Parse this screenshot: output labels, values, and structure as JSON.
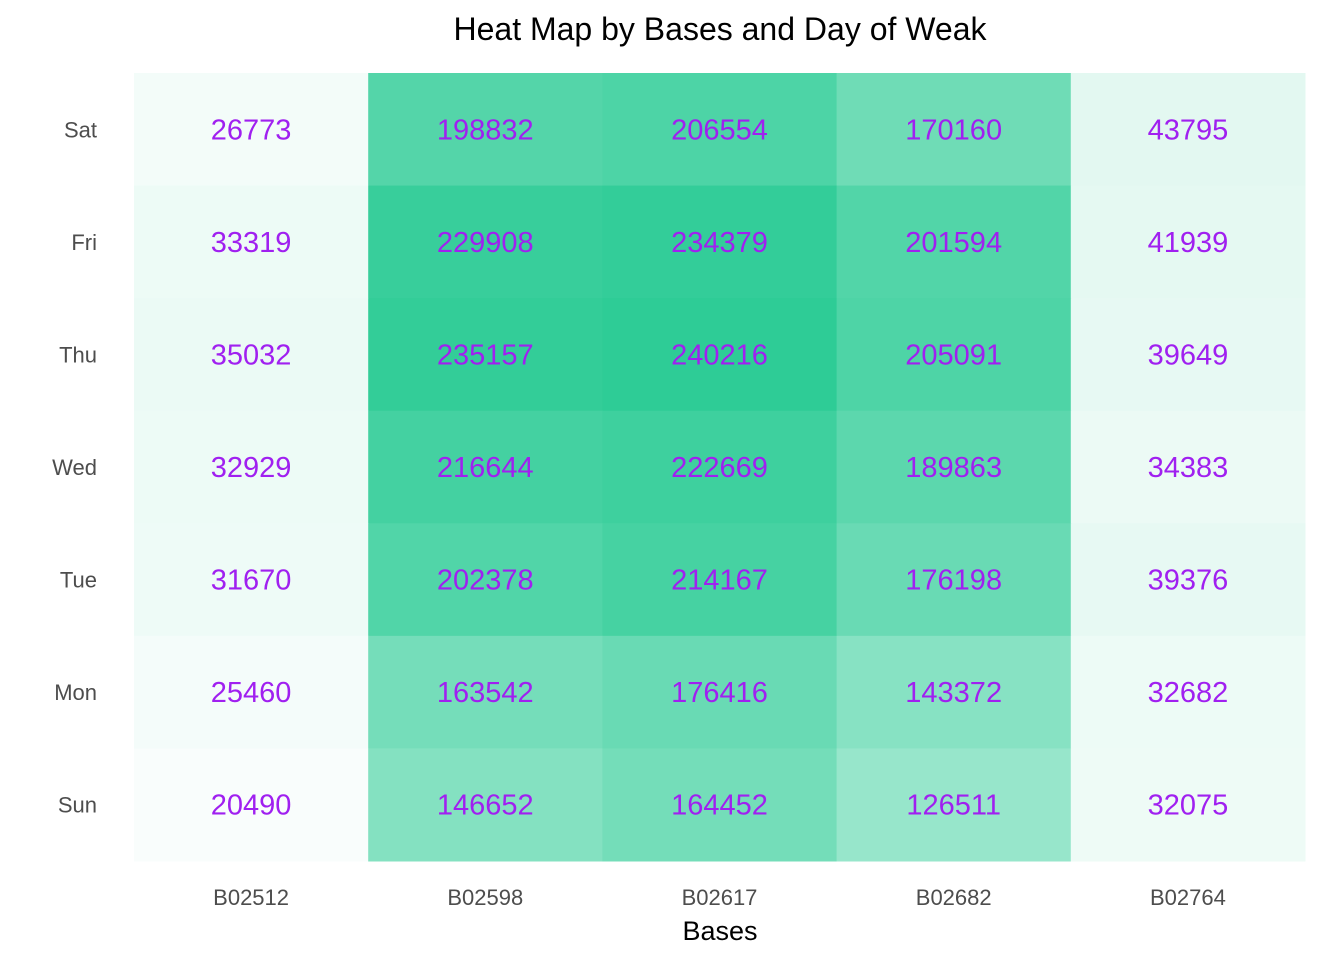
{
  "chart_data": {
    "type": "heatmap",
    "title": "Heat Map by Bases and Day of Weak",
    "xlabel": "Bases",
    "ylabel": "",
    "x_categories": [
      "B02512",
      "B02598",
      "B02617",
      "B02682",
      "B02764"
    ],
    "y_categories": [
      "Sat",
      "Fri",
      "Thu",
      "Wed",
      "Tue",
      "Mon",
      "Sun"
    ],
    "values": [
      [
        26773,
        198832,
        206554,
        170160,
        43795
      ],
      [
        33319,
        229908,
        234379,
        201594,
        41939
      ],
      [
        35032,
        235157,
        240216,
        205091,
        39649
      ],
      [
        32929,
        216644,
        222669,
        189863,
        34383
      ],
      [
        31670,
        202378,
        214167,
        176198,
        39376
      ],
      [
        25460,
        163542,
        176416,
        143372,
        32682
      ],
      [
        20490,
        146652,
        164452,
        126511,
        32075
      ]
    ],
    "color_scale": {
      "low": "#ffffff",
      "high": "#2ecc96"
    },
    "label_color": "#a020f0",
    "legend": "none",
    "grid": false
  }
}
